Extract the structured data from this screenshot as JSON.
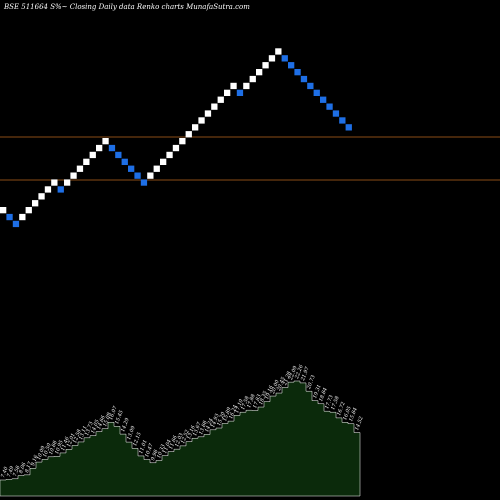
{
  "title": "BSE 511664  S%~  Closing Daily data  Renko  charts MunafaSutra.com",
  "chart_data": {
    "type": "renko",
    "title": "BSE 511664  S%~  Closing Daily data  Renko  charts MunafaSutra.com",
    "bricks": [
      {
        "dir": "up"
      },
      {
        "dir": "down"
      },
      {
        "dir": "down"
      },
      {
        "dir": "up"
      },
      {
        "dir": "up"
      },
      {
        "dir": "up"
      },
      {
        "dir": "up"
      },
      {
        "dir": "up"
      },
      {
        "dir": "up"
      },
      {
        "dir": "down"
      },
      {
        "dir": "up"
      },
      {
        "dir": "up"
      },
      {
        "dir": "up"
      },
      {
        "dir": "up"
      },
      {
        "dir": "up"
      },
      {
        "dir": "up"
      },
      {
        "dir": "up"
      },
      {
        "dir": "down"
      },
      {
        "dir": "down"
      },
      {
        "dir": "down"
      },
      {
        "dir": "down"
      },
      {
        "dir": "down"
      },
      {
        "dir": "down"
      },
      {
        "dir": "up"
      },
      {
        "dir": "up"
      },
      {
        "dir": "up"
      },
      {
        "dir": "up"
      },
      {
        "dir": "up"
      },
      {
        "dir": "up"
      },
      {
        "dir": "up"
      },
      {
        "dir": "up"
      },
      {
        "dir": "up"
      },
      {
        "dir": "up"
      },
      {
        "dir": "up"
      },
      {
        "dir": "up"
      },
      {
        "dir": "up"
      },
      {
        "dir": "up"
      },
      {
        "dir": "down"
      },
      {
        "dir": "up"
      },
      {
        "dir": "up"
      },
      {
        "dir": "up"
      },
      {
        "dir": "up"
      },
      {
        "dir": "up"
      },
      {
        "dir": "up"
      },
      {
        "dir": "down"
      },
      {
        "dir": "down"
      },
      {
        "dir": "down"
      },
      {
        "dir": "down"
      },
      {
        "dir": "down"
      },
      {
        "dir": "down"
      },
      {
        "dir": "down"
      },
      {
        "dir": "down"
      },
      {
        "dir": "down"
      },
      {
        "dir": "down"
      },
      {
        "dir": "down"
      }
    ],
    "reference_lines": [
      "level-upper",
      "level-lower"
    ],
    "price_labels": [
      "7.40",
      "7.49",
      "7.58",
      "8.06",
      "8.17",
      "9.16",
      "10.09",
      "10.50",
      "10.88",
      "10.95",
      "11.46",
      "12.01",
      "12.58",
      "13.11",
      "13.73",
      "14.05",
      "14.66",
      "15.09",
      "16.07",
      "15.45",
      "14.29",
      "13.09",
      "12.15",
      "11.01",
      "10.47",
      "9.98",
      "10.33",
      "11.04",
      "11.66",
      "12.03",
      "12.52",
      "13.16",
      "13.67",
      "13.88",
      "14.24",
      "14.93",
      "15.20",
      "15.89",
      "16.24",
      "17.10",
      "17.58",
      "17.88",
      "17.83",
      "18.35",
      "19.16",
      "20.00",
      "20.45",
      "21.28",
      "22.09",
      "22.26",
      "21.97",
      "20.73",
      "19.31",
      "18.84",
      "17.73",
      "17.58",
      "16.72",
      "16.05",
      "15.84",
      "14.52"
    ]
  },
  "colors": {
    "background": "#000000",
    "up_brick": "#ffffff",
    "down_brick": "#1e6fe6",
    "reference_line": "#b8641e",
    "area_fill": "#0b2a0b",
    "area_stroke": "#ffffff",
    "text": "#ffffff"
  }
}
